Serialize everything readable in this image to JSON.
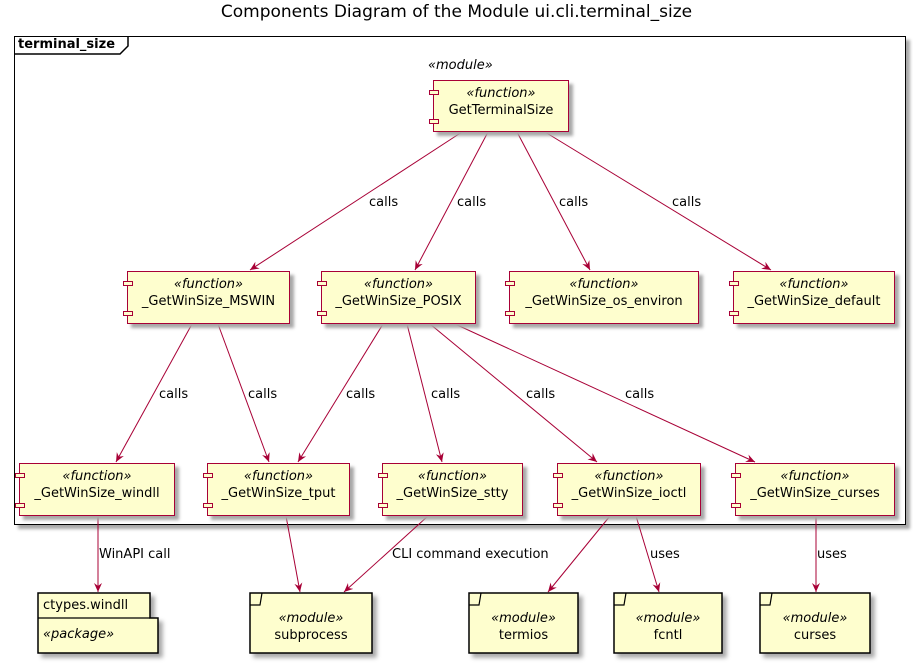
{
  "diagram": {
    "title": "Components Diagram of the Module ui.cli.terminal_size",
    "frame_label": "terminal_size",
    "module_stereotype": "«module»",
    "function_stereotype": "«function»",
    "module_box_stereotype": "«module»",
    "package_stereotype": "«package»",
    "components": {
      "get_terminal_size": "GetTerminalSize",
      "mswin": "_GetWinSize_MSWIN",
      "posix": "_GetWinSize_POSIX",
      "os_environ": "_GetWinSize_os_environ",
      "default": "_GetWinSize_default",
      "windll": "_GetWinSize_windll",
      "tput": "_GetWinSize_tput",
      "stty": "_GetWinSize_stty",
      "ioctl": "_GetWinSize_ioctl",
      "curses_fn": "_GetWinSize_curses"
    },
    "externals": {
      "ctypes": "ctypes.windll",
      "subprocess": "subprocess",
      "termios": "termios",
      "fcntl": "fcntl",
      "curses": "curses"
    },
    "edge_labels": {
      "calls": "calls",
      "winapi": "WinAPI call",
      "cli": "CLI command execution",
      "uses": "uses"
    }
  }
}
